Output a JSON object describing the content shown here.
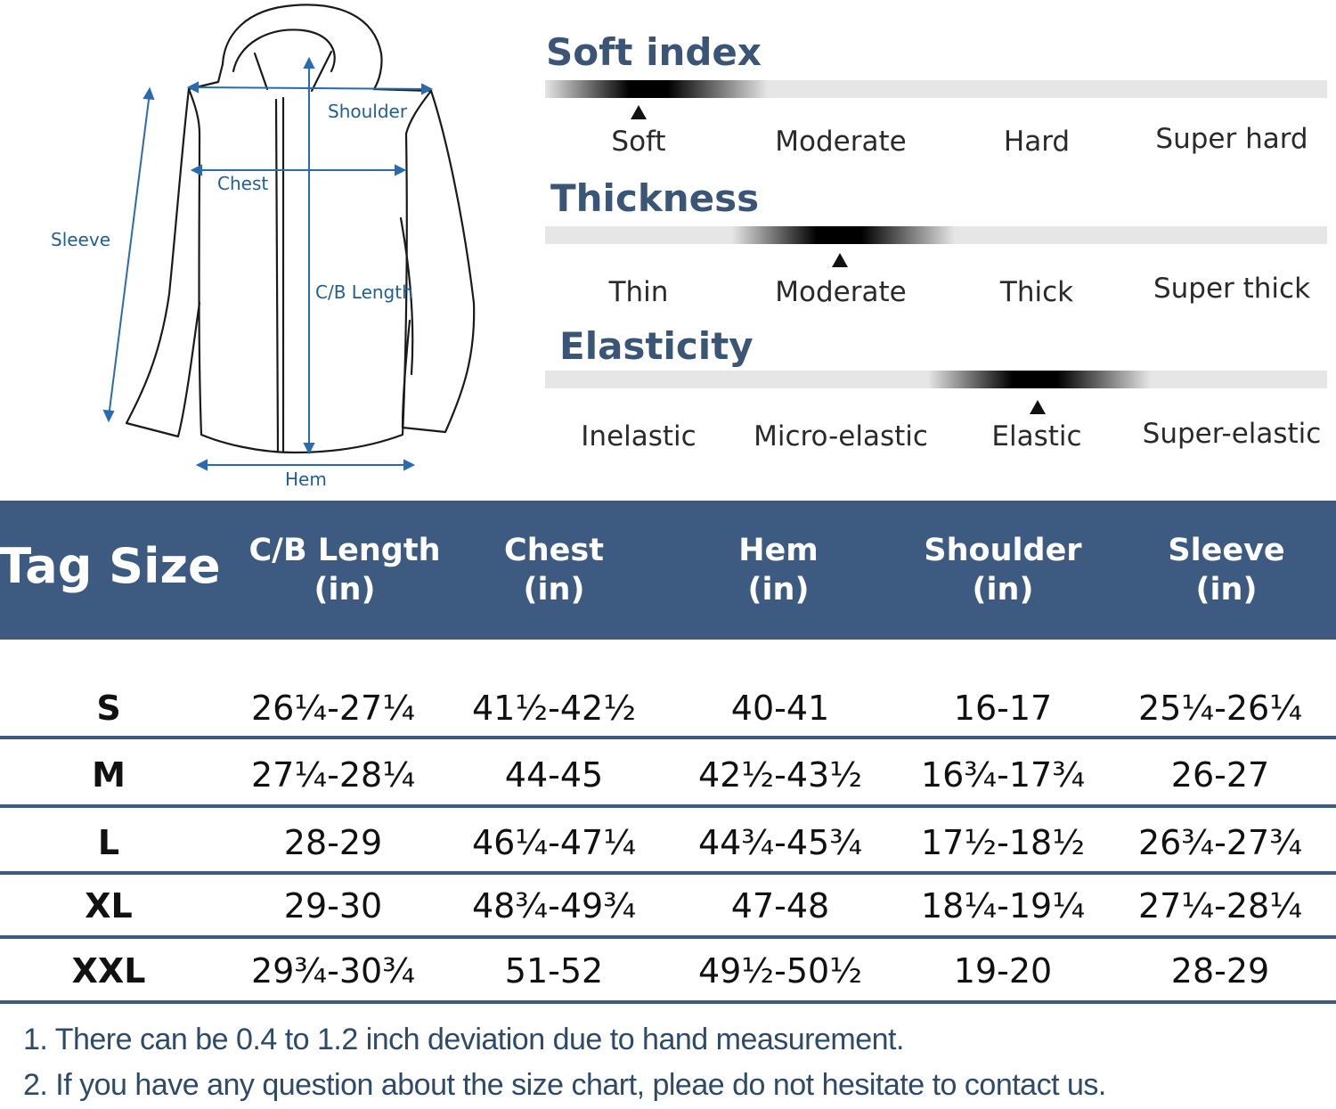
{
  "diagram": {
    "labels": {
      "shoulder": "Shoulder",
      "chest": "Chest",
      "sleeve": "Sleeve",
      "length": "C/B Length",
      "hem": "Hem"
    }
  },
  "fabric": {
    "soft_index": {
      "title": "Soft index",
      "options": [
        "Soft",
        "Moderate",
        "Hard",
        "Super hard"
      ],
      "selected": "Soft"
    },
    "thickness": {
      "title": "Thickness",
      "options": [
        "Thin",
        "Moderate",
        "Thick",
        "Super thick"
      ],
      "selected": "Moderate"
    },
    "elasticity": {
      "title": "Elasticity",
      "options": [
        "Inelastic",
        "Micro-elastic",
        "Elastic",
        "Super-elastic"
      ],
      "selected": "Elastic"
    }
  },
  "table": {
    "header_color": "#3d5a80",
    "columns": [
      {
        "label": "Tag Size",
        "unit": ""
      },
      {
        "label": "C/B Length",
        "unit": "(in)"
      },
      {
        "label": "Chest",
        "unit": "(in)"
      },
      {
        "label": "Hem",
        "unit": "(in)"
      },
      {
        "label": "Shoulder",
        "unit": "(in)"
      },
      {
        "label": "Sleeve",
        "unit": "(in)"
      }
    ],
    "rows": [
      [
        "S",
        "26¼-27¼",
        "41½-42½",
        "40-41",
        "16-17",
        "25¼-26¼"
      ],
      [
        "M",
        "27¼-28¼",
        "44-45",
        "42½-43½",
        "16¾-17¾",
        "26-27"
      ],
      [
        "L",
        "28-29",
        "46¼-47¼",
        "44¾-45¾",
        "17½-18½",
        "26¾-27¾"
      ],
      [
        "XL",
        "29-30",
        "48¾-49¾",
        "47-48",
        "18¼-19¼",
        "27¼-28¼"
      ],
      [
        "XXL",
        "29¾-30¾",
        "51-52",
        "49½-50½",
        "19-20",
        "28-29"
      ]
    ]
  },
  "notes": [
    "1. There can be 0.4 to 1.2 inch deviation due to hand measurement.",
    "2. If you have any question about the size chart, pleae do not hesitate to contact us."
  ]
}
